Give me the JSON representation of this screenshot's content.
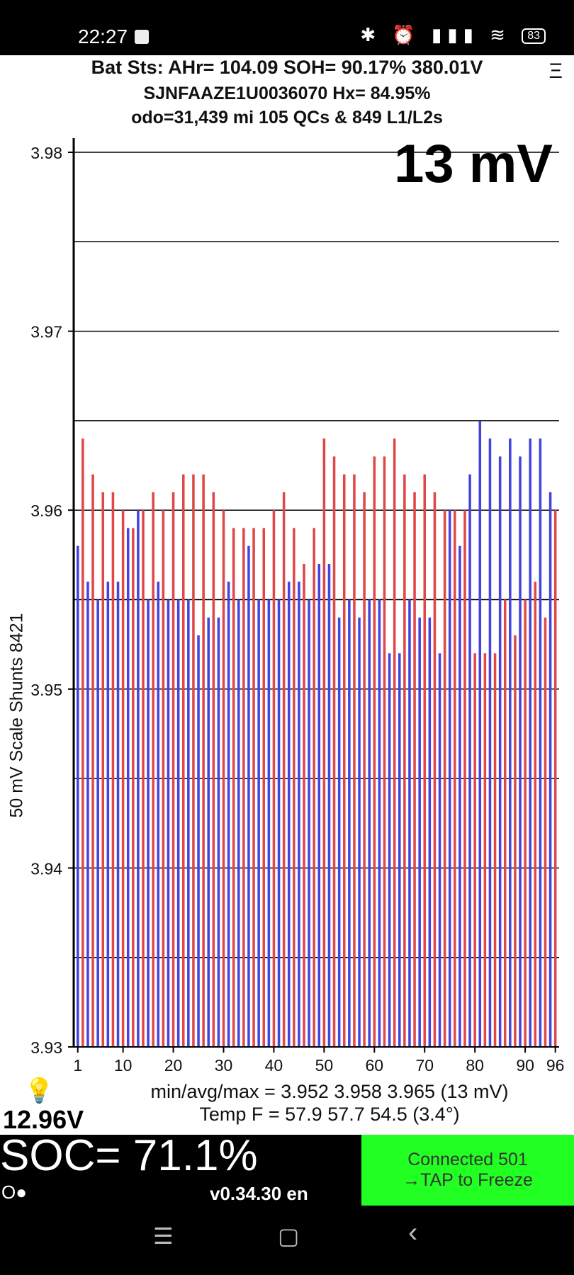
{
  "status_bar": {
    "time": "22:27",
    "battery": "83",
    "icons": "✱ ⏰ ▮▮▮ ≋"
  },
  "header": {
    "line1": "Bat Sts:  AHr= 104.09  SOH= 90.17%   380.01V",
    "line2": "SJNFAAZE1U0036070   Hx= 84.95%",
    "line3": "odo=31,439 mi  105 QCs & 849 L1/L2s",
    "menu_icon": "Ξ"
  },
  "spread_display": "13 mV",
  "y_axis_label": "50 mV Scale   Shunts 8421",
  "stats": {
    "line1": "min/avg/max = 3.952 3.958 3.965  (13 mV)",
    "line2": "Temp F = 57.9  57.7  54.5  (3.4°)"
  },
  "aux_voltage": "12.96V",
  "bulb_icon": "💡",
  "soc": "SOC= 71.1%",
  "indicator": "O●",
  "version": "v0.34.30 en",
  "connection": {
    "line1": "Connected 501",
    "line2": "→TAP to Freeze"
  },
  "nav": {
    "recents": "☰",
    "home": "▢",
    "back": "‹"
  },
  "colors": {
    "odd_cell": "#4444dd",
    "even_cell": "#e04848",
    "connected_bg": "#22ff22"
  },
  "chart_data": {
    "type": "bar",
    "xlabel": "",
    "ylabel": "50 mV Scale   Shunts 8421",
    "ylim": [
      3.93,
      3.98
    ],
    "yticks": [
      3.93,
      3.94,
      3.95,
      3.96,
      3.97,
      3.98
    ],
    "ytick_labels": [
      "3.93",
      "3.94",
      "3.95",
      "3.96",
      "3.97",
      "3.98"
    ],
    "xticks": [
      1,
      10,
      20,
      30,
      40,
      50,
      60,
      70,
      80,
      90,
      96
    ],
    "grid": "horizontal, every 0.005",
    "values": [
      3.958,
      3.964,
      3.956,
      3.962,
      3.955,
      3.961,
      3.956,
      3.961,
      3.956,
      3.96,
      3.959,
      3.959,
      3.96,
      3.96,
      3.955,
      3.961,
      3.956,
      3.96,
      3.955,
      3.961,
      3.955,
      3.962,
      3.955,
      3.962,
      3.953,
      3.962,
      3.954,
      3.961,
      3.954,
      3.96,
      3.956,
      3.959,
      3.955,
      3.959,
      3.958,
      3.959,
      3.955,
      3.959,
      3.955,
      3.96,
      3.955,
      3.961,
      3.956,
      3.959,
      3.956,
      3.957,
      3.955,
      3.959,
      3.957,
      3.964,
      3.957,
      3.963,
      3.954,
      3.962,
      3.955,
      3.962,
      3.954,
      3.961,
      3.955,
      3.963,
      3.955,
      3.963,
      3.952,
      3.964,
      3.952,
      3.962,
      3.955,
      3.961,
      3.954,
      3.962,
      3.954,
      3.961,
      3.952,
      3.96,
      3.96,
      3.96,
      3.958,
      3.96,
      3.962,
      3.952,
      3.965,
      3.952,
      3.964,
      3.952,
      3.963,
      3.955,
      3.964,
      3.953,
      3.963,
      3.955,
      3.964,
      3.956,
      3.964,
      3.954,
      3.961,
      3.96
    ]
  }
}
